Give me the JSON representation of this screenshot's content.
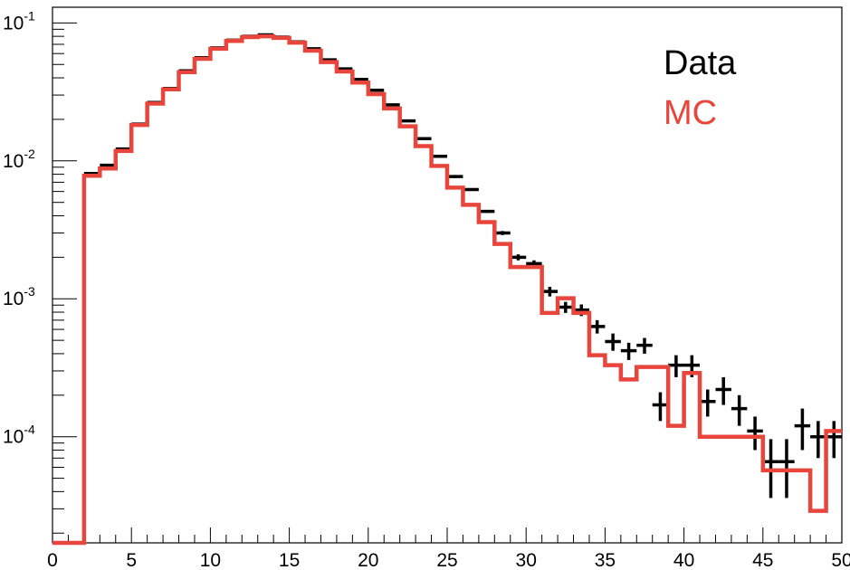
{
  "chart_data": {
    "type": "line",
    "title": "",
    "xlabel": "",
    "ylabel": "",
    "xlim": [
      0,
      50
    ],
    "ylim": [
      1.7e-05,
      0.13
    ],
    "yscale": "log",
    "grid": false,
    "legend_placement": "top-right",
    "x_tick_labels": [
      "0",
      "5",
      "10",
      "15",
      "20",
      "25",
      "30",
      "35",
      "40",
      "45",
      "50"
    ],
    "y_tick_labels": [
      {
        "base": "10",
        "exp": "-1"
      },
      {
        "base": "10",
        "exp": "-2"
      },
      {
        "base": "10",
        "exp": "-3"
      },
      {
        "base": "10",
        "exp": "-4"
      }
    ],
    "bin_edges": [
      0,
      1,
      2,
      3,
      4,
      5,
      6,
      7,
      8,
      9,
      10,
      11,
      12,
      13,
      14,
      15,
      16,
      17,
      18,
      19,
      20,
      21,
      22,
      23,
      24,
      25,
      26,
      27,
      28,
      29,
      30,
      31,
      32,
      33,
      34,
      35,
      36,
      37,
      38,
      39,
      40,
      41,
      42,
      43,
      44,
      45,
      46,
      47,
      48,
      49,
      50
    ],
    "series": [
      {
        "name": "Data",
        "color": "#000000",
        "style": "points-with-error-bars",
        "x": [
          2.5,
          3.5,
          4.5,
          5.5,
          6.5,
          7.5,
          8.5,
          9.5,
          10.5,
          11.5,
          12.5,
          13.5,
          14.5,
          15.5,
          16.5,
          17.5,
          18.5,
          19.5,
          20.5,
          21.5,
          22.5,
          23.5,
          24.5,
          25.5,
          26.5,
          27.5,
          28.5,
          29.5,
          30.5,
          31.5,
          32.5,
          33.5,
          34.5,
          35.5,
          36.5,
          37.5,
          38.5,
          39.5,
          40.5,
          41.5,
          42.5,
          43.5,
          44.5,
          45.5,
          46.5,
          47.5,
          48.5,
          49.5
        ],
        "values": [
          0.0081,
          0.0093,
          0.0122,
          0.0185,
          0.0265,
          0.0335,
          0.045,
          0.056,
          0.066,
          0.075,
          0.08,
          0.082,
          0.079,
          0.073,
          0.065,
          0.054,
          0.0465,
          0.039,
          0.0325,
          0.0255,
          0.0195,
          0.0145,
          0.0108,
          0.0077,
          0.0062,
          0.0043,
          0.003,
          0.002,
          0.0018,
          0.00113,
          0.00087,
          0.00083,
          0.00063,
          0.00049,
          0.00042,
          0.00046,
          0.00017,
          0.00033,
          0.00033,
          0.00018,
          0.00022,
          0.00016,
          0.00011,
          6.6e-05,
          6.6e-05,
          0.00012,
          0.0001,
          0.0001
        ],
        "errors": [
          0.0001,
          0.0001,
          0.0002,
          0.0002,
          0.0003,
          0.0003,
          0.0004,
          0.0004,
          0.0004,
          0.0004,
          0.0005,
          0.0005,
          0.0005,
          0.0004,
          0.0004,
          0.0004,
          0.0004,
          0.0003,
          0.0003,
          0.0003,
          0.0003,
          0.0002,
          0.0002,
          0.0002,
          0.0001,
          0.0001,
          0.0001,
          0.0001,
          0.0001,
          9e-05,
          8e-05,
          8e-05,
          7e-05,
          7e-05,
          6e-05,
          6e-05,
          4e-05,
          6e-05,
          6e-05,
          4e-05,
          5e-05,
          4e-05,
          3e-05,
          3e-05,
          3e-05,
          4e-05,
          3e-05,
          3e-05
        ]
      },
      {
        "name": "MC",
        "color": "#e8453c",
        "style": "step-histogram",
        "values": [
          1.7e-05,
          1.7e-05,
          0.0078,
          0.0088,
          0.0118,
          0.0182,
          0.026,
          0.033,
          0.044,
          0.055,
          0.065,
          0.074,
          0.079,
          0.08,
          0.078,
          0.072,
          0.063,
          0.052,
          0.0445,
          0.037,
          0.0305,
          0.024,
          0.0178,
          0.0128,
          0.0092,
          0.0064,
          0.0048,
          0.0036,
          0.0025,
          0.0017,
          0.0017,
          0.00079,
          0.00101,
          0.00079,
          0.00039,
          0.00033,
          0.00026,
          0.00032,
          0.00032,
          0.00012,
          0.00029,
          0.0001,
          0.0001,
          0.0001,
          0.0001,
          5.7e-05,
          5.7e-05,
          5.7e-05,
          2.9e-05,
          0.00011
        ]
      }
    ]
  }
}
